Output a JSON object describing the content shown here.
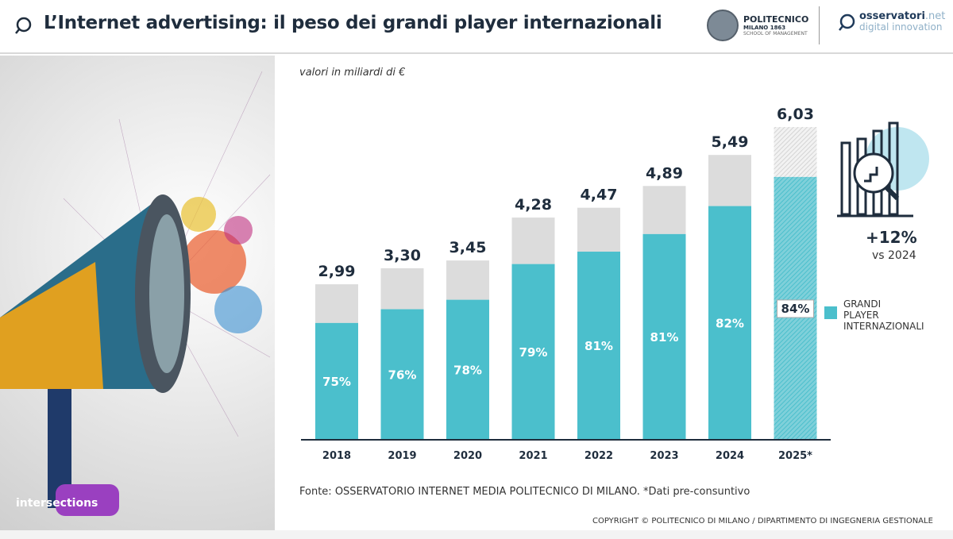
{
  "header": {
    "title": "L’Internet advertising: il peso dei grandi player internazionali",
    "logo1": {
      "name": "POLITECNICO",
      "sub": "MILANO 1863",
      "school": "SCHOOL OF MANAGEMENT"
    },
    "logo2": {
      "name": "osservatori",
      "suffix": ".net",
      "sub": "digital innovation"
    }
  },
  "image": {
    "brand": "intersections"
  },
  "chart_data": {
    "type": "bar",
    "subtitle": "valori in miliardi di €",
    "categories": [
      "2018",
      "2019",
      "2020",
      "2021",
      "2022",
      "2023",
      "2024",
      "2025*"
    ],
    "totals": [
      2.99,
      3.3,
      3.45,
      4.28,
      4.47,
      4.89,
      5.49,
      6.03
    ],
    "total_labels": [
      "2,99",
      "3,30",
      "3,45",
      "4,28",
      "4,47",
      "4,89",
      "5,49",
      "6,03"
    ],
    "share_pct": [
      75,
      76,
      78,
      79,
      81,
      81,
      82,
      84
    ],
    "share_labels": [
      "75%",
      "76%",
      "78%",
      "79%",
      "81%",
      "81%",
      "82%",
      "84%"
    ],
    "series": [
      {
        "name": "GRANDI PLAYER INTERNAZIONALI",
        "color": "#4bbfcc"
      },
      {
        "color": "#dcdcdc"
      }
    ],
    "stacked": true,
    "estimated_last": true,
    "ylim": [
      0,
      6.03
    ],
    "grid": false,
    "legend": "right"
  },
  "callout": {
    "value": "+12%",
    "label": "vs 2024",
    "icon": "chart-magnifier-icon"
  },
  "legend": {
    "line1": "GRANDI",
    "line2": "PLAYER",
    "line3": "INTERNAZIONALI"
  },
  "source": "Fonte:  OSSERVATORIO INTERNET MEDIA POLITECNICO DI MILANO. *Dati pre-consuntivo",
  "copyright": "COPYRIGHT © POLITECNICO DI MILANO / DIPARTIMENTO DI INGEGNERIA GESTIONALE"
}
